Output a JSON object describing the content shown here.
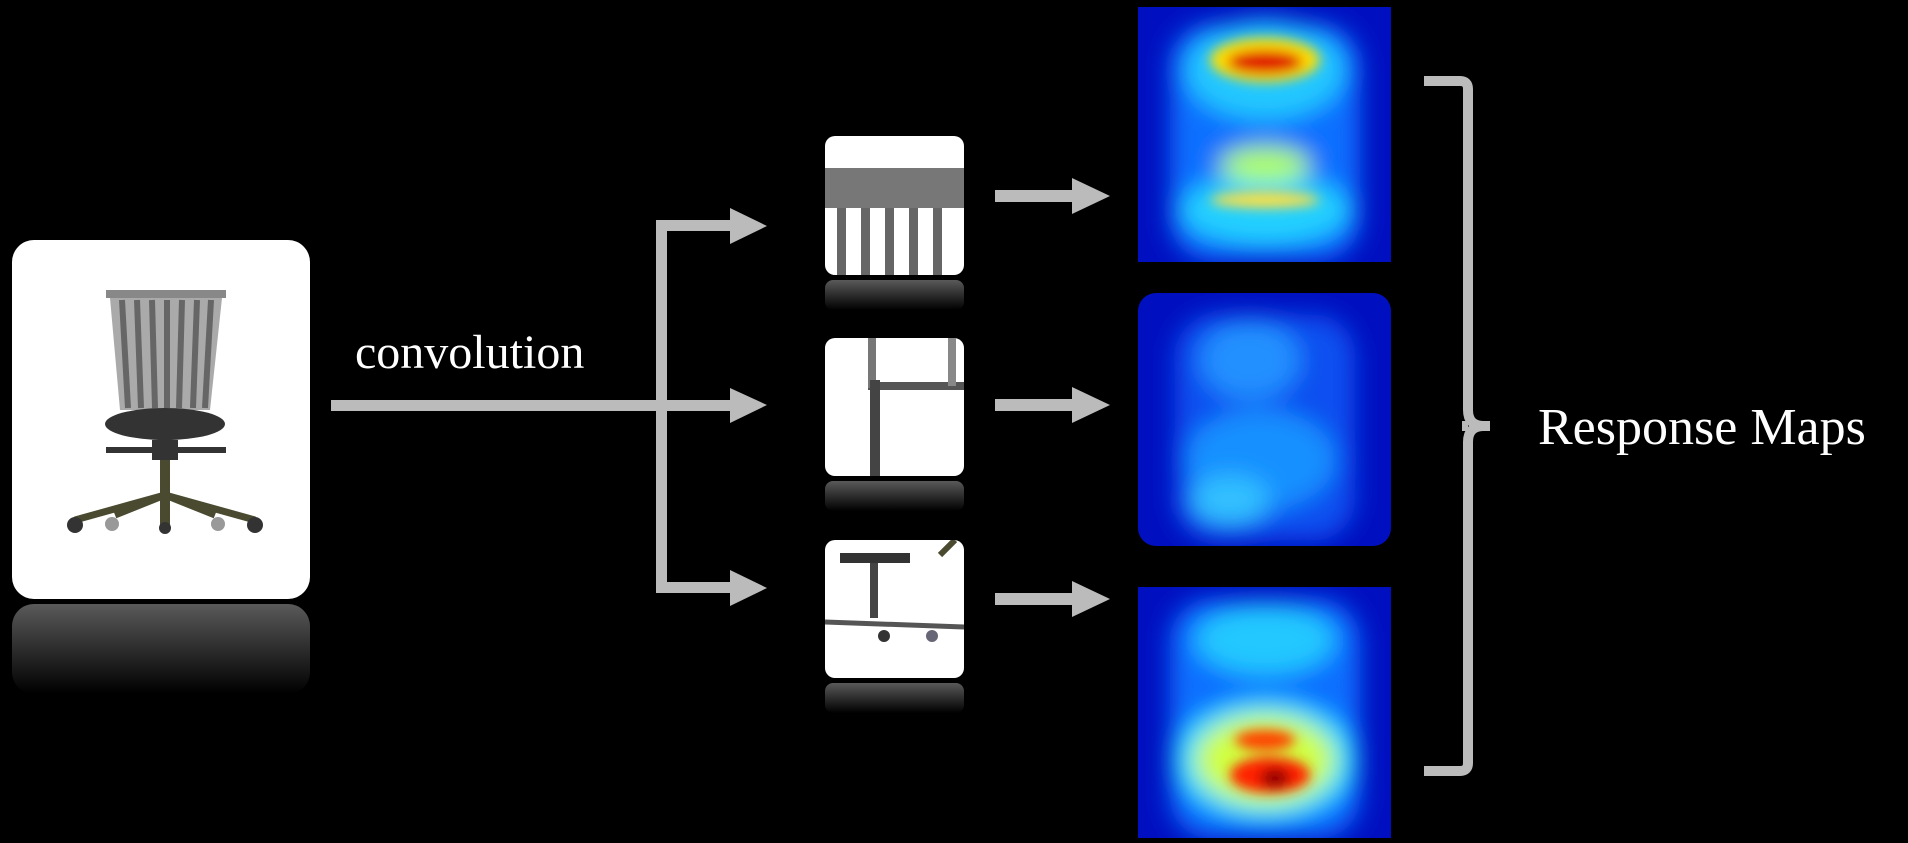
{
  "labels": {
    "operation": "convolution",
    "output": "Response Maps"
  }
}
